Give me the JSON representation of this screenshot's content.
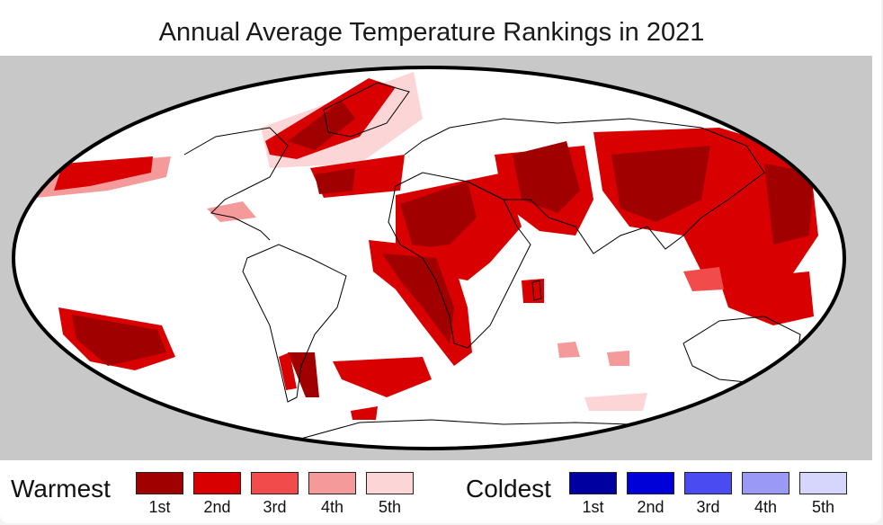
{
  "map": {
    "title": "Annual Average Temperature Rankings in 2021",
    "ocean_color": "#ffffff",
    "background_color": "#c8c8c8",
    "coastline_color": "#000000"
  },
  "legend": {
    "warmest": {
      "label": "Warmest",
      "items": [
        {
          "rank": "1st",
          "color": "#a00000"
        },
        {
          "rank": "2nd",
          "color": "#d80000"
        },
        {
          "rank": "3rd",
          "color": "#f24b4b"
        },
        {
          "rank": "4th",
          "color": "#f59a9a"
        },
        {
          "rank": "5th",
          "color": "#fcd6d6"
        }
      ]
    },
    "coldest": {
      "label": "Coldest",
      "items": [
        {
          "rank": "1st",
          "color": "#0000a0"
        },
        {
          "rank": "2nd",
          "color": "#0000d8"
        },
        {
          "rank": "3rd",
          "color": "#4b4bf2"
        },
        {
          "rank": "4th",
          "color": "#9a9af5"
        },
        {
          "rank": "5th",
          "color": "#d6d6fc"
        }
      ]
    }
  }
}
